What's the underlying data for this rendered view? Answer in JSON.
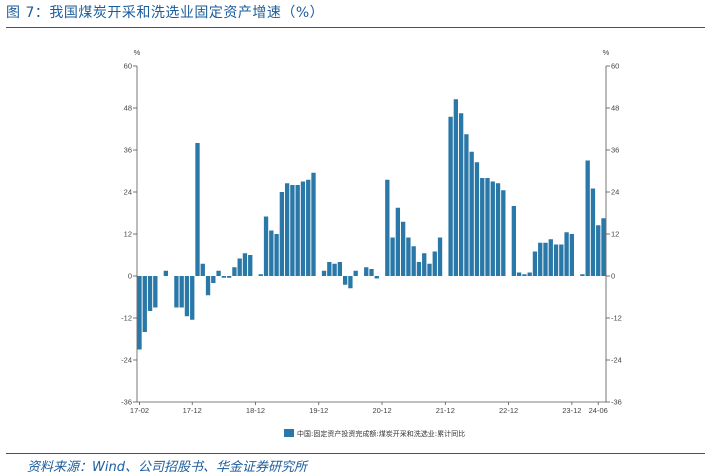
{
  "figure": {
    "title": "图 7：我国煤炭开采和洗选业固定资产增速（%）",
    "source": "资料来源：Wind、公司招股书、华金证券研究所"
  },
  "chart_data": {
    "type": "bar",
    "title": "",
    "ylabel_left": "%",
    "ylabel_right": "%",
    "ylim": [
      -36,
      60
    ],
    "yticks": [
      60,
      48,
      36,
      24,
      12,
      0,
      -12,
      -24,
      -36
    ],
    "xtick_labels": [
      "17-02",
      "17-12",
      "18-12",
      "19-12",
      "20-12",
      "21-12",
      "22-12",
      "23-12",
      "24-06"
    ],
    "grid": false,
    "legend_position": "bottom",
    "color": "#2a78a8",
    "series": [
      {
        "name": "中国:固定资产投资完成额:煤炭开采和洗选业:累计同比",
        "values": [
          -21,
          -16,
          -10,
          -9,
          0,
          1.5,
          0,
          -9,
          -9,
          -11.5,
          -12.5,
          38,
          3.5,
          -5.5,
          -2,
          1.5,
          -0.5,
          -0.5,
          2.5,
          5,
          6.5,
          6,
          0,
          0.5,
          17,
          13,
          12,
          24,
          26.5,
          26,
          26,
          27,
          27.5,
          29.5,
          0,
          1.5,
          4,
          3.5,
          4,
          -2.5,
          -3.5,
          1.5,
          0,
          2.5,
          2,
          -0.7,
          0,
          27.5,
          11,
          19.5,
          15.5,
          11,
          8.5,
          4,
          6.5,
          3.5,
          7,
          11,
          0,
          45.5,
          50.5,
          46.5,
          40.5,
          35.5,
          32.5,
          28,
          28,
          27,
          26.5,
          24.5,
          0,
          20,
          1,
          0.5,
          1,
          7,
          9.5,
          9.5,
          10.5,
          9,
          9,
          12.5,
          12,
          0,
          0.5,
          33,
          25,
          14.5,
          16.5
        ]
      }
    ]
  }
}
